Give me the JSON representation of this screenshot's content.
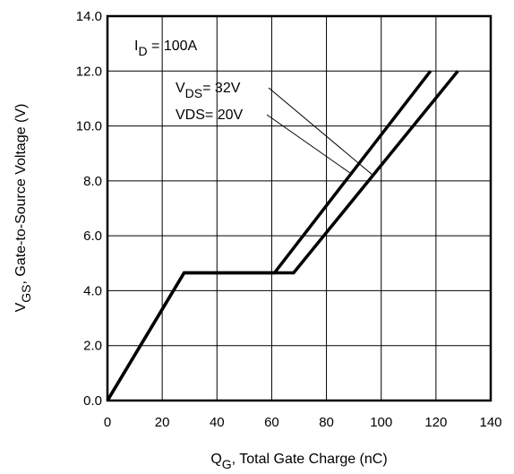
{
  "chart_data": {
    "type": "line",
    "xlabel": {
      "main": "Q",
      "sub": "G",
      "rest": ",  Total Gate Charge (nC)"
    },
    "ylabel": {
      "main": "V",
      "sub": "GS",
      "rest": ", Gate-to-Source Voltage (V)"
    },
    "xlim": [
      0,
      140
    ],
    "ylim": [
      0,
      14
    ],
    "xticks": [
      "0",
      "20",
      "40",
      "60",
      "80",
      "100",
      "120",
      "140"
    ],
    "yticks": [
      "0.0",
      "2.0",
      "4.0",
      "6.0",
      "8.0",
      "10.0",
      "12.0",
      "14.0"
    ],
    "grid": true,
    "series": [
      {
        "name": "V_DS = 20V",
        "x": [
          0,
          28,
          61,
          118
        ],
        "y": [
          0,
          4.65,
          4.65,
          12.0
        ]
      },
      {
        "name": "V_DS = 32V",
        "x": [
          0,
          28,
          68,
          128
        ],
        "y": [
          0,
          4.65,
          4.65,
          12.0
        ]
      }
    ],
    "annotations": {
      "id": {
        "main": "I",
        "sub": "D",
        "rest": " = 100A"
      },
      "vds32": {
        "main": "V",
        "sub": "DS",
        "rest": "= 32V"
      },
      "vds20": {
        "text": "VDS= 20V"
      }
    }
  }
}
